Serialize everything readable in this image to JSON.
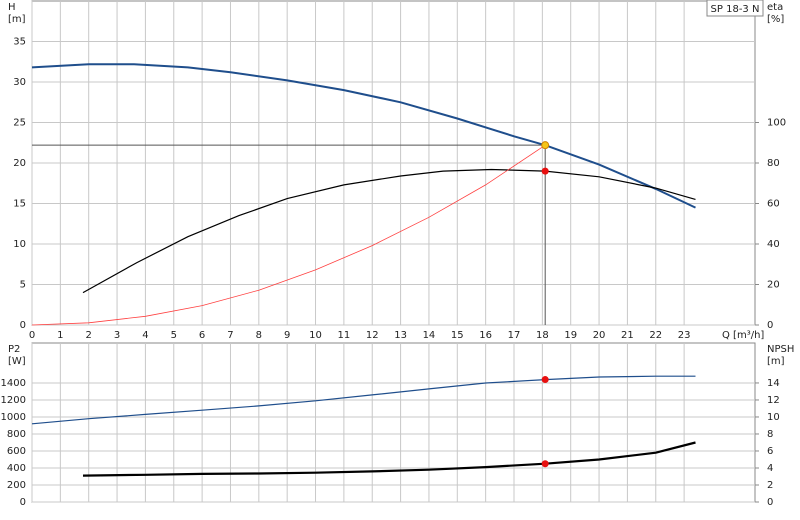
{
  "chart_data": [
    {
      "type": "line",
      "badge": "SP 18-3 N",
      "ylabel": "H",
      "yunit": "[m]",
      "y2label": "eta",
      "y2unit": "[%]",
      "xlabel": "Q [m³/h]",
      "xlim": [
        0,
        25.5
      ],
      "xticks": [
        0,
        1,
        2,
        3,
        4,
        5,
        6,
        7,
        8,
        9,
        10,
        11,
        12,
        13,
        14,
        15,
        16,
        17,
        18,
        19,
        20,
        21,
        22,
        23
      ],
      "xtick_labels": true,
      "ylim": [
        0,
        40
      ],
      "yticks": [
        0,
        5,
        10,
        15,
        20,
        25,
        30,
        35
      ],
      "y2lim": [
        0,
        160
      ],
      "y2ticks": [
        0,
        20,
        40,
        60,
        80,
        100
      ],
      "grid": true,
      "series": [
        {
          "color": "#1f4e8c",
          "width": 2,
          "axis": "y",
          "x": [
            0,
            2,
            3.6,
            5.5,
            7,
            9,
            11,
            13,
            15,
            17,
            18.1,
            20,
            22,
            23.4
          ],
          "values": [
            31.8,
            32.2,
            32.2,
            31.8,
            31.2,
            30.2,
            29.0,
            27.5,
            25.5,
            23.3,
            22.2,
            19.8,
            16.8,
            14.5
          ]
        },
        {
          "color": "#000000",
          "width": 1.2,
          "axis": "y2",
          "x": [
            1.8,
            3.7,
            5.5,
            7.3,
            9,
            11,
            13,
            14.5,
            16.2,
            18.1,
            20,
            22,
            23.4
          ],
          "values": [
            16,
            30.8,
            43.6,
            54,
            62.4,
            69.2,
            73.6,
            76,
            76.8,
            76,
            73.2,
            67.6,
            62
          ]
        },
        {
          "color": "#ff4040",
          "width": 0.8,
          "axis": "y",
          "x": [
            0,
            2,
            4,
            6,
            8,
            10,
            12,
            14,
            16,
            18.1
          ],
          "values": [
            0,
            0.27,
            1.08,
            2.4,
            4.3,
            6.8,
            9.8,
            13.3,
            17.3,
            22.2
          ]
        }
      ],
      "points": [
        {
          "x": 18.1,
          "y": 22.2,
          "axis": "y",
          "color": "#f5c518",
          "guide": true
        },
        {
          "x": 18.1,
          "y": 76,
          "axis": "y2",
          "color": "#e81010",
          "guide": false
        }
      ]
    },
    {
      "type": "line",
      "ylabel": "P2",
      "yunit": "[W]",
      "y2label": "NPSH",
      "y2unit": "[m]",
      "xlim": [
        0,
        25.5
      ],
      "xticks": [
        0,
        1,
        2,
        3,
        4,
        5,
        6,
        7,
        8,
        9,
        10,
        11,
        12,
        13,
        14,
        15,
        16,
        17,
        18,
        19,
        20,
        21,
        22,
        23
      ],
      "xtick_labels": false,
      "ylim": [
        0,
        1870
      ],
      "yticks": [
        0,
        200,
        400,
        600,
        800,
        1000,
        1200,
        1400
      ],
      "y2lim": [
        0,
        18.7
      ],
      "y2ticks": [
        0,
        2,
        4,
        6,
        8,
        10,
        12,
        14
      ],
      "grid": true,
      "series": [
        {
          "color": "#1f4e8c",
          "width": 1.2,
          "axis": "y",
          "x": [
            0,
            2,
            4,
            6,
            8,
            10,
            12,
            14,
            16,
            18.1,
            20,
            22,
            23.4
          ],
          "values": [
            920,
            980,
            1030,
            1080,
            1130,
            1190,
            1260,
            1330,
            1400,
            1440,
            1470,
            1480,
            1480
          ]
        },
        {
          "color": "#000000",
          "width": 2.2,
          "axis": "y2",
          "x": [
            1.8,
            4,
            6,
            8,
            10,
            12,
            14,
            16,
            18.1,
            20,
            22,
            23.4
          ],
          "values": [
            3.1,
            3.2,
            3.3,
            3.35,
            3.45,
            3.6,
            3.8,
            4.1,
            4.5,
            5.0,
            5.8,
            7.0
          ]
        }
      ],
      "points": [
        {
          "x": 18.1,
          "y": 1440,
          "axis": "y",
          "color": "#e81010",
          "guide": false
        },
        {
          "x": 18.1,
          "y": 4.5,
          "axis": "y2",
          "color": "#e81010",
          "guide": false
        }
      ]
    }
  ]
}
